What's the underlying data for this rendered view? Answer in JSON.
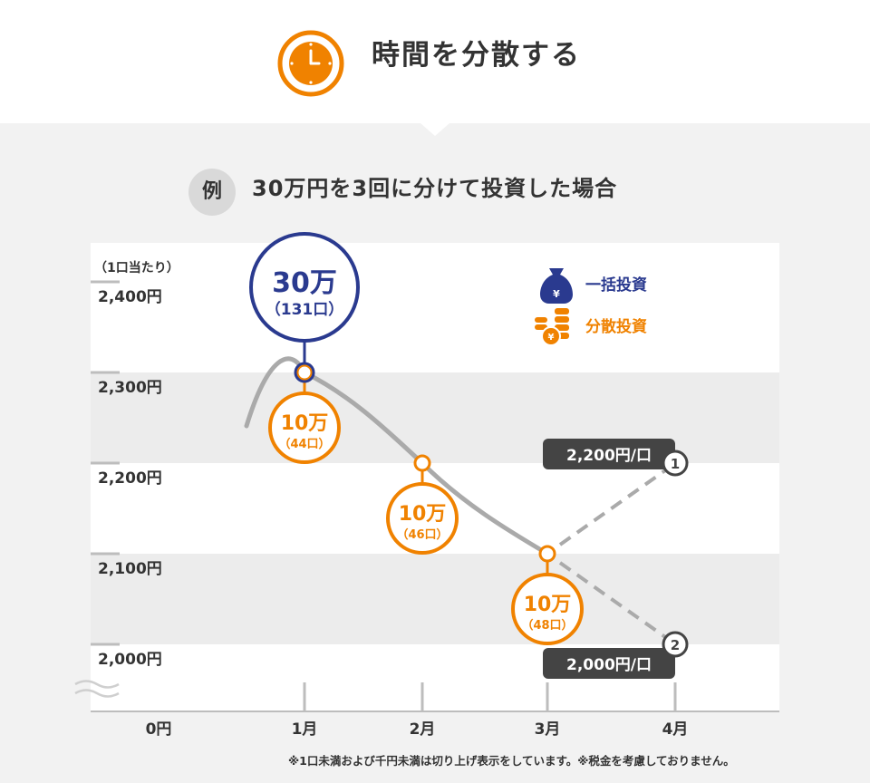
{
  "header": {
    "title": "時間を分散する",
    "icon": "clock-icon",
    "accent": "#f08200"
  },
  "example": {
    "badge": "例",
    "text": "30万円を3回に分けて投資した場合"
  },
  "chart_data": {
    "type": "line",
    "unit_label": "（1口当たり）",
    "y_ticks": [
      "2,400円",
      "2,300円",
      "2,200円",
      "2,100円",
      "2,000円"
    ],
    "y_zero": "0円",
    "ylim": [
      2000,
      2450
    ],
    "y_break": true,
    "categories": [
      "1月",
      "2月",
      "3月",
      "4月"
    ],
    "series": [
      {
        "name": "price",
        "color": "#aaaaaa",
        "points": [
          {
            "x": "1月",
            "y": 2300
          },
          {
            "x": "2月",
            "y": 2200
          },
          {
            "x": "3月",
            "y": 2100
          }
        ]
      }
    ],
    "scenarios": [
      {
        "marker": "1",
        "to_x": "4月",
        "y": 2200,
        "label": "2,200円/口"
      },
      {
        "marker": "2",
        "to_x": "4月",
        "y": 2000,
        "label": "2,000円/口"
      }
    ],
    "lump_sum": {
      "x": "1月",
      "y": 2300,
      "amount": "30万",
      "units": "（131口）",
      "color": "#2a3a8f"
    },
    "installments": [
      {
        "x": "1月",
        "y": 2300,
        "amount": "10万",
        "units": "（44口）"
      },
      {
        "x": "2月",
        "y": 2200,
        "amount": "10万",
        "units": "（46口）"
      },
      {
        "x": "3月",
        "y": 2100,
        "amount": "10万",
        "units": "（48口）"
      }
    ],
    "installment_color": "#f08200",
    "legend": [
      {
        "label": "一括投資",
        "color": "#2a3a8f",
        "icon": "money-bag-icon"
      },
      {
        "label": "分散投資",
        "color": "#f08200",
        "icon": "coin-stack-icon"
      }
    ],
    "legend_position": "top-right"
  },
  "note": "※1口未満および千円未満は切り上げ表示をしています。※税金を考慮しておりません。"
}
